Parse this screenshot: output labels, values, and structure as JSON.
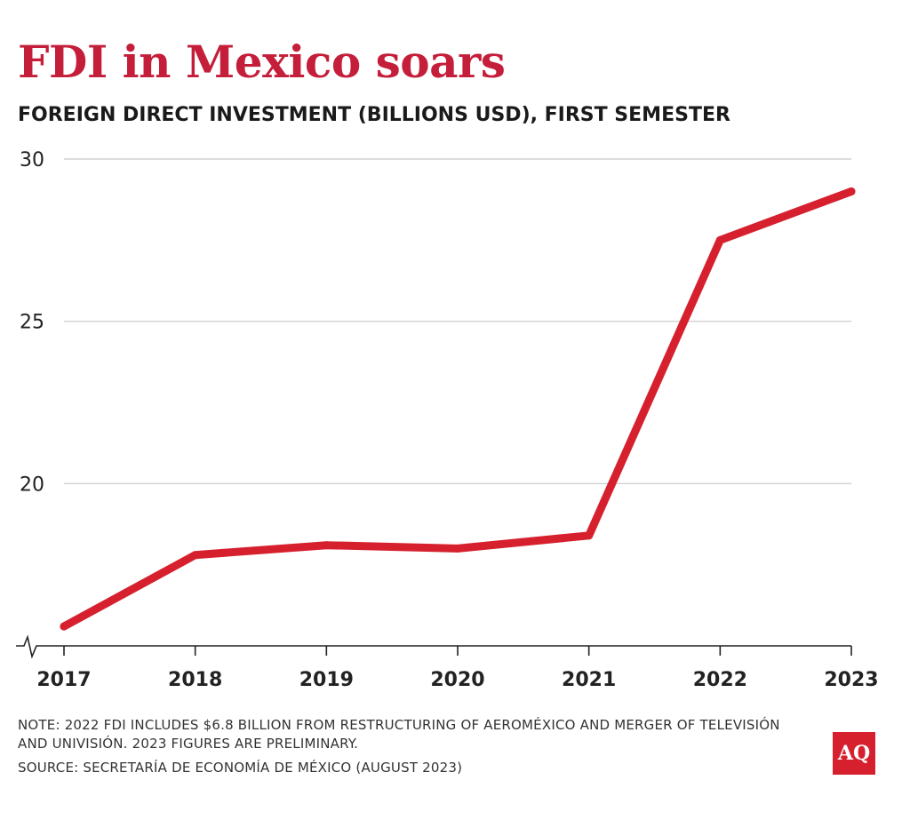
{
  "title": "FDI in Mexico soars",
  "subtitle": "FOREIGN DIRECT INVESTMENT (BILLIONS USD), FIRST SEMESTER",
  "note": "NOTE: 2022 FDI INCLUDES $6.8 BILLION FROM RESTRUCTURING OF AEROMÉXICO AND MERGER OF TELEVISIÓN AND UNIVISIÓN. 2023 FIGURES ARE PRELIMINARY.",
  "source": "SOURCE: SECRETARÍA DE ECONOMÍA DE MÉXICO (AUGUST 2023)",
  "logo": {
    "text": "AQ",
    "icon": "aq-logo-icon",
    "color": "#d6202e"
  },
  "colors": {
    "line": "#d6202e",
    "title": "#c41e3a",
    "grid": "#c8c8c8",
    "axis": "#222222"
  },
  "chart_data": {
    "type": "line",
    "title": "FDI in Mexico soars",
    "subtitle": "FOREIGN DIRECT INVESTMENT (BILLIONS USD), FIRST SEMESTER",
    "xlabel": "",
    "ylabel": "",
    "categories": [
      "2017",
      "2018",
      "2019",
      "2020",
      "2021",
      "2022",
      "2023"
    ],
    "series": [
      {
        "values": [
          15.6,
          17.8,
          18.1,
          18.0,
          18.4,
          27.5,
          29.0
        ]
      }
    ],
    "ylim": [
      15.0,
      30
    ],
    "yticks": [
      20,
      25,
      30
    ],
    "axis_break": true,
    "grid": true,
    "legend": "none"
  }
}
